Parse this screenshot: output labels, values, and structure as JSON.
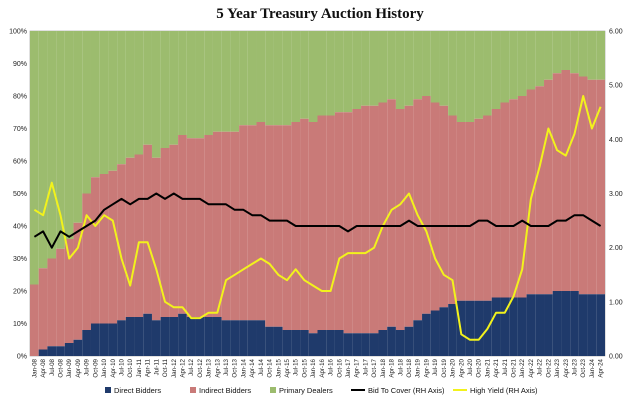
{
  "chart_data": {
    "type": "bar",
    "title": "5 Year Treasury Auction History",
    "stacked_percent_series": [
      {
        "name": "Direct Bidders",
        "color": "#1f3a6b"
      },
      {
        "name": "Indirect Bidders",
        "color": "#c97a78"
      },
      {
        "name": "Primary Dealers",
        "color": "#9cbc6e"
      }
    ],
    "line_series": [
      {
        "name": "Bid To Cover (RH Axis)",
        "color": "#000000",
        "axis": "right"
      },
      {
        "name": "High Yield (RH Axis)",
        "color": "#f2f21c",
        "axis": "right"
      }
    ],
    "left_axis": {
      "range": [
        0,
        100
      ],
      "ticks": [
        "0%",
        "10%",
        "20%",
        "30%",
        "40%",
        "50%",
        "60%",
        "70%",
        "80%",
        "90%",
        "100%"
      ]
    },
    "right_axis": {
      "range": [
        0,
        6
      ],
      "ticks": [
        "0.00",
        "1.00",
        "2.00",
        "3.00",
        "4.00",
        "5.00",
        "6.00"
      ]
    },
    "x_tick_labels": [
      "Jan-08",
      "Apr-08",
      "Jul-08",
      "Oct-08",
      "Jan-09",
      "Apr-09",
      "Jul-09",
      "Oct-09",
      "Jan-10",
      "Apr-10",
      "Jul-10",
      "Oct-10",
      "Jan-11",
      "Apr-11",
      "Jul-11",
      "Oct-11",
      "Jan-12",
      "Apr-12",
      "Jul-12",
      "Oct-12",
      "Jan-13",
      "Apr-13",
      "Jul-13",
      "Oct-13",
      "Jan-14",
      "Apr-14",
      "Jul-14",
      "Oct-14",
      "Jan-15",
      "Apr-15",
      "Jul-15",
      "Oct-15",
      "Jan-16",
      "Apr-16",
      "Jul-16",
      "Oct-16",
      "Jan-17",
      "Apr-17",
      "Jul-17",
      "Oct-17",
      "Jan-18",
      "Apr-18",
      "Jul-18",
      "Oct-18",
      "Jan-19",
      "Apr-19",
      "Jul-19",
      "Oct-19",
      "Jan-20",
      "Apr-20",
      "Jul-20",
      "Oct-20",
      "Jan-21",
      "Apr-21",
      "Jul-21",
      "Oct-21",
      "Jan-22",
      "Apr-22",
      "Jul-22",
      "Oct-22",
      "Jan-23",
      "Apr-23",
      "Jul-23",
      "Oct-23",
      "Jan-24",
      "Apr-24"
    ],
    "quarterly_data": {
      "direct_pct": [
        0,
        2,
        3,
        3,
        4,
        5,
        8,
        10,
        10,
        10,
        11,
        12,
        12,
        13,
        11,
        12,
        12,
        13,
        12,
        12,
        12,
        12,
        11,
        11,
        11,
        11,
        11,
        9,
        9,
        8,
        8,
        8,
        7,
        8,
        8,
        8,
        7,
        7,
        7,
        7,
        8,
        9,
        8,
        9,
        11,
        13,
        14,
        15,
        16,
        17,
        17,
        17,
        17,
        18,
        18,
        18,
        18,
        19,
        19,
        19,
        20,
        20,
        20,
        19,
        19,
        19
      ],
      "indirect_pct": [
        22,
        25,
        27,
        30,
        32,
        36,
        42,
        45,
        46,
        47,
        48,
        49,
        50,
        52,
        50,
        52,
        53,
        55,
        55,
        55,
        56,
        57,
        58,
        58,
        60,
        60,
        61,
        62,
        62,
        63,
        64,
        65,
        65,
        66,
        66,
        67,
        68,
        69,
        70,
        70,
        70,
        70,
        68,
        68,
        68,
        67,
        64,
        62,
        58,
        55,
        55,
        56,
        57,
        58,
        60,
        61,
        62,
        63,
        64,
        66,
        67,
        68,
        67,
        67,
        66,
        66
      ],
      "bid_to_cover": [
        2.2,
        2.3,
        2.0,
        2.3,
        2.2,
        2.3,
        2.4,
        2.5,
        2.7,
        2.8,
        2.9,
        2.8,
        2.9,
        2.9,
        3.0,
        2.9,
        3.0,
        2.9,
        2.9,
        2.9,
        2.8,
        2.8,
        2.8,
        2.7,
        2.7,
        2.6,
        2.6,
        2.5,
        2.5,
        2.5,
        2.4,
        2.4,
        2.4,
        2.4,
        2.4,
        2.4,
        2.3,
        2.4,
        2.4,
        2.4,
        2.4,
        2.4,
        2.4,
        2.5,
        2.4,
        2.4,
        2.4,
        2.4,
        2.4,
        2.4,
        2.4,
        2.5,
        2.5,
        2.4,
        2.4,
        2.4,
        2.5,
        2.4,
        2.4,
        2.4,
        2.5,
        2.5,
        2.6,
        2.6,
        2.5,
        2.4
      ],
      "high_yield": [
        2.7,
        2.6,
        3.2,
        2.6,
        1.8,
        2.0,
        2.6,
        2.4,
        2.6,
        2.5,
        1.8,
        1.3,
        2.1,
        2.1,
        1.6,
        1.0,
        0.9,
        0.9,
        0.7,
        0.7,
        0.8,
        0.8,
        1.4,
        1.5,
        1.6,
        1.7,
        1.8,
        1.7,
        1.5,
        1.4,
        1.6,
        1.4,
        1.3,
        1.2,
        1.2,
        1.8,
        1.9,
        1.9,
        1.9,
        2.0,
        2.4,
        2.7,
        2.8,
        3.0,
        2.6,
        2.3,
        1.8,
        1.5,
        1.4,
        0.4,
        0.3,
        0.3,
        0.5,
        0.8,
        0.8,
        1.1,
        1.6,
        2.9,
        3.5,
        4.2,
        3.8,
        3.7,
        4.1,
        4.8,
        4.2,
        4.6
      ]
    }
  },
  "legend": {
    "items": [
      {
        "label": "Direct Bidders",
        "color": "#1f3a6b",
        "kind": "box"
      },
      {
        "label": "Indirect Bidders",
        "color": "#c97a78",
        "kind": "box"
      },
      {
        "label": "Primary Dealers",
        "color": "#9cbc6e",
        "kind": "box"
      },
      {
        "label": "Bid To Cover (RH Axis)",
        "color": "#000000",
        "kind": "line"
      },
      {
        "label": "High Yield (RH Axis)",
        "color": "#f2f21c",
        "kind": "line"
      }
    ]
  }
}
